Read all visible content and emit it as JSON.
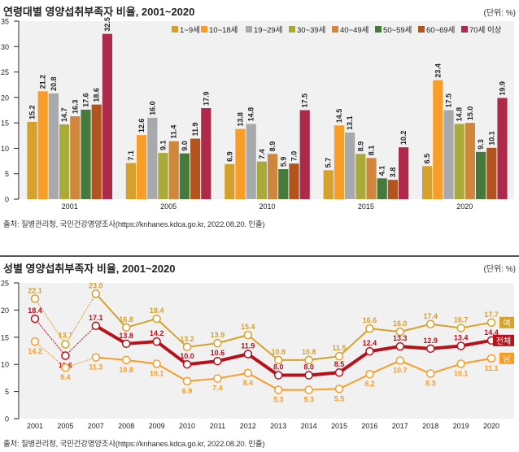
{
  "chart1": {
    "title": "연령대별 영양섭취부족자 비율, 2001~2020",
    "unit": "(단위: %)",
    "source": "출처: 질병관리청, 국민건강영양조사(https://knhanes.kdca.go.kr, 2022.08.20. 인출)"
  },
  "chart2": {
    "title": "성별 영양섭취부족자 비율, 2001~2020",
    "unit": "(단위: %)",
    "source": "출처: 질병관리청, 국민건강영양조사(https://knhanes.kdca.go.kr, 2022.08.20. 인출)"
  },
  "chart_data": [
    {
      "type": "bar",
      "title": "연령대별 영양섭취부족자 비율, 2001~2020",
      "xlabel": "",
      "ylabel": "",
      "ylim": [
        0,
        35
      ],
      "yticks": [
        0,
        5,
        10,
        15,
        20,
        25,
        30,
        35
      ],
      "grid": false,
      "legend_position": "top-right",
      "categories": [
        "2001",
        "2005",
        "2010",
        "2015",
        "2020"
      ],
      "series": [
        {
          "name": "1~9세",
          "color": "#D4A22C",
          "values": [
            15.2,
            7.1,
            6.9,
            5.7,
            6.5
          ]
        },
        {
          "name": "10~18세",
          "color": "#F89D27",
          "values": [
            21.2,
            12.6,
            13.8,
            14.5,
            23.4
          ]
        },
        {
          "name": "19~29세",
          "color": "#A7A9AC",
          "values": [
            20.8,
            16.0,
            14.8,
            13.1,
            17.5
          ]
        },
        {
          "name": "30~39세",
          "color": "#AAAA3A",
          "values": [
            14.7,
            9.1,
            7.4,
            8.9,
            14.8
          ]
        },
        {
          "name": "40~49세",
          "color": "#CF873D",
          "values": [
            16.3,
            11.4,
            8.9,
            8.1,
            15.0
          ]
        },
        {
          "name": "50~59세",
          "color": "#467A3C",
          "values": [
            17.6,
            9.0,
            5.9,
            4.1,
            9.3
          ]
        },
        {
          "name": "60~69세",
          "color": "#B3541E",
          "values": [
            18.6,
            11.9,
            7.0,
            3.8,
            10.1
          ]
        },
        {
          "name": "70세 이상",
          "color": "#AE2A4A",
          "values": [
            32.5,
            17.9,
            17.5,
            10.2,
            19.9
          ]
        }
      ]
    },
    {
      "type": "line",
      "title": "성별 영양섭취부족자 비율, 2001~2020",
      "xlabel": "",
      "ylabel": "",
      "ylim": [
        0,
        25
      ],
      "yticks": [
        0,
        5,
        10,
        15,
        20,
        25
      ],
      "grid": false,
      "legend_position": "right",
      "x": [
        "2001",
        "2005",
        "2007",
        "2008",
        "2009",
        "2010",
        "2011",
        "2012",
        "2013",
        "2014",
        "2015",
        "2016",
        "2017",
        "2018",
        "2019",
        "2020"
      ],
      "dotted_segments_through": "2007",
      "series": [
        {
          "name": "여",
          "color": "#D4A22C",
          "values": [
            22.1,
            13.7,
            23.0,
            16.8,
            18.4,
            13.2,
            13.9,
            15.4,
            10.8,
            10.8,
            11.5,
            16.6,
            16.0,
            17.4,
            16.7,
            17.7
          ]
        },
        {
          "name": "전체",
          "color": "#B5121B",
          "values": [
            18.4,
            11.6,
            17.1,
            13.8,
            14.2,
            10.0,
            10.6,
            11.9,
            8.0,
            8.0,
            8.5,
            12.4,
            13.3,
            12.9,
            13.4,
            14.4
          ]
        },
        {
          "name": "남",
          "color": "#F89D27",
          "values": [
            14.2,
            9.4,
            11.3,
            10.8,
            10.1,
            6.9,
            7.4,
            8.4,
            5.3,
            5.3,
            5.5,
            8.2,
            10.7,
            8.3,
            10.1,
            11.1
          ]
        }
      ]
    }
  ]
}
